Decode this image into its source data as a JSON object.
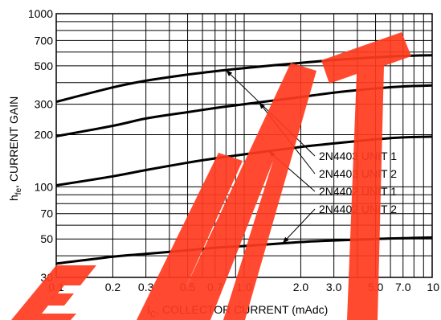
{
  "watermark": {
    "text": "EMT",
    "color": "#ff3b1f"
  },
  "chart_data": {
    "type": "line",
    "title": "",
    "xlabel_main": "I",
    "xlabel_sub": "C",
    "xlabel_rest": ", COLLECTOR CURRENT (mAdc)",
    "ylabel_main": "h",
    "ylabel_sub": "fe",
    "ylabel_rest": ", CURRENT GAIN",
    "x_scale": "log",
    "y_scale": "log",
    "xlim": [
      0.1,
      10
    ],
    "ylim": [
      30,
      1000
    ],
    "grid": true,
    "x_ticks": [
      {
        "v": 0.1,
        "label": "0.1"
      },
      {
        "v": 0.2,
        "label": "0.2"
      },
      {
        "v": 0.3,
        "label": "0.3"
      },
      {
        "v": 0.5,
        "label": "0.5"
      },
      {
        "v": 0.7,
        "label": "0.7"
      },
      {
        "v": 1.0,
        "label": "1.0"
      },
      {
        "v": 2.0,
        "label": "2.0"
      },
      {
        "v": 3.0,
        "label": "3.0"
      },
      {
        "v": 5.0,
        "label": "5.0"
      },
      {
        "v": 7.0,
        "label": "7.0"
      },
      {
        "v": 10,
        "label": "10"
      }
    ],
    "y_ticks": [
      {
        "v": 1000,
        "label": "1000"
      },
      {
        "v": 700,
        "label": "700"
      },
      {
        "v": 500,
        "label": "500"
      },
      {
        "v": 300,
        "label": "300"
      },
      {
        "v": 200,
        "label": "200"
      },
      {
        "v": 100,
        "label": "100"
      },
      {
        "v": 70,
        "label": "70"
      },
      {
        "v": 50,
        "label": "50"
      },
      {
        "v": 30,
        "label": "30"
      }
    ],
    "x_grid": [
      0.1,
      0.2,
      0.3,
      0.4,
      0.5,
      0.6,
      0.7,
      0.8,
      0.9,
      1,
      2,
      3,
      4,
      5,
      6,
      7,
      8,
      9,
      10
    ],
    "y_grid": [
      30,
      40,
      50,
      60,
      70,
      80,
      90,
      100,
      200,
      300,
      400,
      500,
      600,
      700,
      800,
      900,
      1000
    ],
    "series": [
      {
        "name": "2N4403 UNIT 1",
        "x": [
          0.1,
          0.2,
          0.3,
          0.5,
          0.7,
          1.0,
          2.0,
          3.0,
          5.0,
          7.0,
          10
        ],
        "y": [
          310,
          375,
          410,
          445,
          465,
          485,
          520,
          540,
          560,
          570,
          575
        ]
      },
      {
        "name": "2N4403 UNIT 2",
        "x": [
          0.1,
          0.2,
          0.3,
          0.5,
          0.7,
          1.0,
          2.0,
          3.0,
          5.0,
          7.0,
          10
        ],
        "y": [
          196,
          225,
          248,
          270,
          285,
          300,
          330,
          350,
          370,
          380,
          385
        ]
      },
      {
        "name": "2N4402 UNIT 1",
        "x": [
          0.1,
          0.2,
          0.3,
          0.5,
          0.7,
          1.0,
          2.0,
          3.0,
          5.0,
          7.0,
          10
        ],
        "y": [
          102,
          115,
          125,
          138,
          146,
          154,
          170,
          178,
          188,
          193,
          195
        ]
      },
      {
        "name": "2N4402 UNIT 2",
        "x": [
          0.1,
          0.2,
          0.3,
          0.5,
          0.7,
          1.0,
          2.0,
          3.0,
          5.0,
          7.0,
          10
        ],
        "y": [
          36,
          39.5,
          41,
          43,
          44.5,
          45.5,
          48,
          49,
          50,
          50.5,
          51
        ]
      }
    ],
    "legend_leaders": [
      {
        "series": 0,
        "target_x": 0.8
      },
      {
        "series": 1,
        "target_x": 1.2
      },
      {
        "series": 2,
        "target_x": 1.35
      },
      {
        "series": 3,
        "target_x": 1.6
      }
    ]
  }
}
